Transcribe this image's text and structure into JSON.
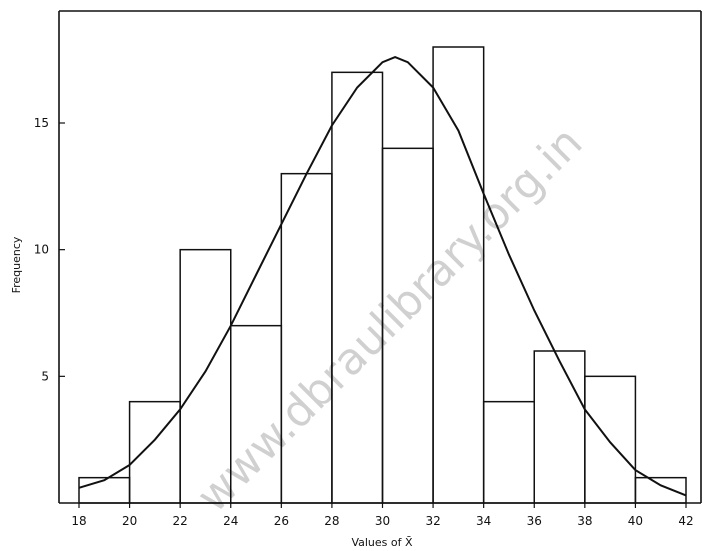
{
  "chart_data": {
    "type": "bar",
    "xlabel": "Values of X̄",
    "ylabel": "Frequency",
    "x_ticks": [
      18,
      20,
      22,
      24,
      26,
      28,
      30,
      32,
      34,
      36,
      38,
      40,
      42
    ],
    "y_ticks": [
      5,
      10,
      15
    ],
    "xlim": [
      18,
      42
    ],
    "ylim": [
      0,
      19.5
    ],
    "bins": [
      {
        "start": 18,
        "end": 20,
        "value": 1
      },
      {
        "start": 20,
        "end": 22,
        "value": 4
      },
      {
        "start": 22,
        "end": 24,
        "value": 10
      },
      {
        "start": 24,
        "end": 26,
        "value": 7
      },
      {
        "start": 26,
        "end": 28,
        "value": 13
      },
      {
        "start": 28,
        "end": 30,
        "value": 17
      },
      {
        "start": 30,
        "end": 32,
        "value": 14
      },
      {
        "start": 32,
        "end": 34,
        "value": 18
      },
      {
        "start": 34,
        "end": 36,
        "value": 4
      },
      {
        "start": 36,
        "end": 38,
        "value": 6
      },
      {
        "start": 38,
        "end": 40,
        "value": 5
      },
      {
        "start": 40,
        "end": 42,
        "value": 1
      }
    ],
    "curve": {
      "x": [
        18.0,
        19.0,
        20.0,
        21.0,
        22.0,
        23.0,
        24.0,
        25.0,
        26.0,
        27.0,
        28.0,
        29.0,
        30.0,
        30.5,
        31.0,
        32.0,
        33.0,
        34.0,
        35.0,
        36.0,
        37.0,
        38.0,
        39.0,
        40.0,
        41.0,
        42.0
      ],
      "y": [
        0.6,
        0.9,
        1.5,
        2.5,
        3.7,
        5.2,
        7.0,
        9.0,
        11.0,
        13.0,
        14.9,
        16.4,
        17.4,
        17.6,
        17.4,
        16.4,
        14.7,
        12.2,
        9.8,
        7.6,
        5.6,
        3.7,
        2.4,
        1.3,
        0.7,
        0.3
      ]
    },
    "grid": false,
    "legend": "none"
  },
  "watermark": "www.dbraulibrary.org.in"
}
